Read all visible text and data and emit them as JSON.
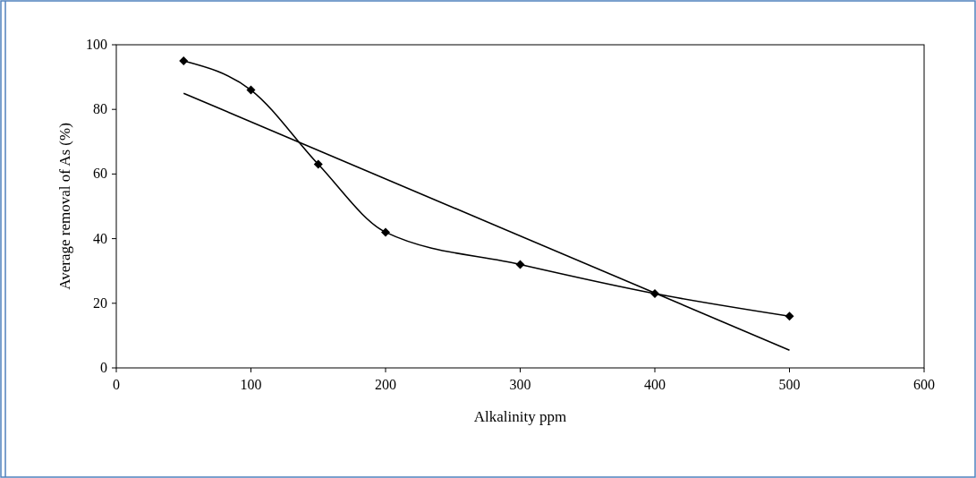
{
  "chart_data": {
    "type": "line",
    "xlabel": "Alkalinity ppm",
    "ylabel": "Average removal of As (%)",
    "x": [
      50,
      100,
      150,
      200,
      300,
      400,
      500
    ],
    "series": [
      {
        "color": "#000000",
        "values": [
          95,
          86,
          63,
          42,
          32,
          23,
          16
        ]
      },
      {
        "color": "#000000",
        "x": [
          50,
          500
        ],
        "values": [
          85,
          5.5
        ],
        "marker": "none"
      }
    ],
    "xlim": [
      0,
      600
    ],
    "xticks": [
      0,
      100,
      200,
      300,
      400,
      500,
      600
    ],
    "ylim": [
      0,
      100
    ],
    "yticks": [
      0,
      20,
      40,
      60,
      80,
      100
    ],
    "grid": false,
    "marker": "diamond",
    "line_style": "solid"
  }
}
